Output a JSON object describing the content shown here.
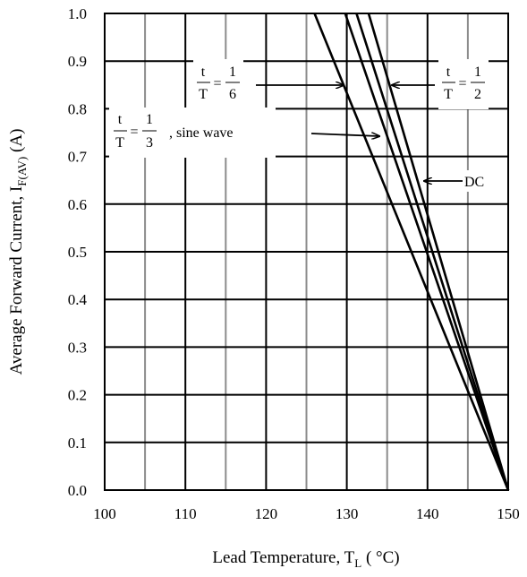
{
  "chart_data": {
    "type": "line",
    "xlabel": "Lead Temperature, T",
    "xlabel_sub": "L",
    "xlabel_unit": " ( °C)",
    "ylabel": "Average Forward Current, I",
    "ylabel_sub": "F(AV)",
    "ylabel_unit": " (A)",
    "xlim": [
      100,
      150
    ],
    "ylim": [
      0.0,
      1.0
    ],
    "x_ticks": [
      "100",
      "110",
      "120",
      "130",
      "140",
      "150"
    ],
    "y_ticks": [
      "0.0",
      "0.1",
      "0.2",
      "0.3",
      "0.4",
      "0.5",
      "0.6",
      "0.7",
      "0.8",
      "0.9",
      "1.0"
    ],
    "grid": true,
    "series": [
      {
        "name": "t/T = 1/3, sine wave",
        "x": [
          126,
          150
        ],
        "y": [
          1.0,
          0.0
        ]
      },
      {
        "name": "t/T = 1/6",
        "x": [
          129.8,
          150
        ],
        "y": [
          1.0,
          0.0
        ]
      },
      {
        "name": "t/T = 1/2",
        "x": [
          131.2,
          150
        ],
        "y": [
          1.0,
          0.0
        ]
      },
      {
        "name": "DC",
        "x": [
          132.7,
          150
        ],
        "y": [
          1.0,
          0.0
        ]
      }
    ],
    "annotations": [
      {
        "id": "sixth",
        "t": "t",
        "T": "T",
        "eq": "=",
        "num": "1",
        "den": "6",
        "suffix": ""
      },
      {
        "id": "half",
        "t": "t",
        "T": "T",
        "eq": "=",
        "num": "1",
        "den": "2",
        "suffix": ""
      },
      {
        "id": "third",
        "t": "t",
        "T": "T",
        "eq": "=",
        "num": "1",
        "den": "3",
        "suffix": ", sine wave"
      },
      {
        "id": "dc",
        "text": "DC"
      }
    ]
  }
}
